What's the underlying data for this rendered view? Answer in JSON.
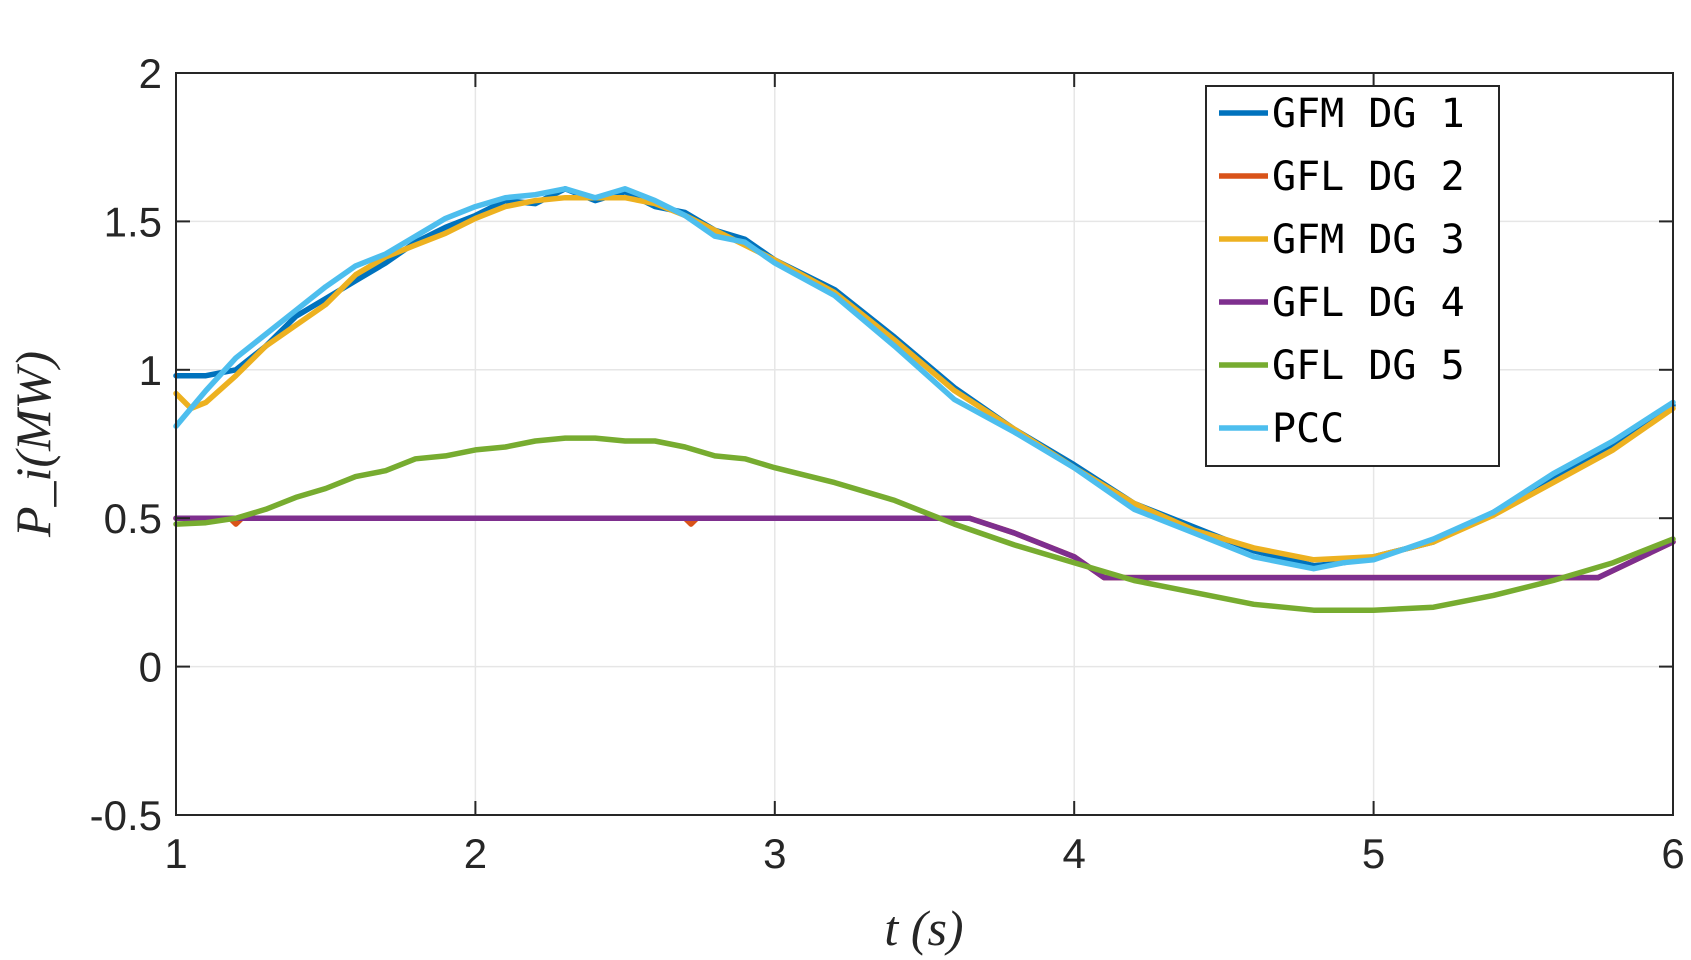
{
  "chart_data": {
    "type": "line",
    "xlabel": "t (s)",
    "ylabel": "P_i(MW)",
    "xlim": [
      1,
      6
    ],
    "ylim": [
      -0.5,
      2
    ],
    "xticks": [
      {
        "value": 1,
        "label": "1"
      },
      {
        "value": 2,
        "label": "2"
      },
      {
        "value": 3,
        "label": "3"
      },
      {
        "value": 4,
        "label": "4"
      },
      {
        "value": 5,
        "label": "5"
      },
      {
        "value": 6,
        "label": "6"
      }
    ],
    "yticks": [
      {
        "value": -0.5,
        "label": "-0.5"
      },
      {
        "value": 0,
        "label": "0"
      },
      {
        "value": 0.5,
        "label": "0.5"
      },
      {
        "value": 1,
        "label": "1"
      },
      {
        "value": 1.5,
        "label": "1.5"
      },
      {
        "value": 2,
        "label": "2"
      }
    ],
    "grid": true,
    "legend_position": "top-right",
    "series": [
      {
        "name": "GFM DG 1",
        "color": "#0072BD",
        "points": [
          [
            1.0,
            0.98
          ],
          [
            1.1,
            0.98
          ],
          [
            1.2,
            1.0
          ],
          [
            1.3,
            1.08
          ],
          [
            1.4,
            1.18
          ],
          [
            1.5,
            1.24
          ],
          [
            1.6,
            1.3
          ],
          [
            1.7,
            1.36
          ],
          [
            1.8,
            1.43
          ],
          [
            1.9,
            1.48
          ],
          [
            2.0,
            1.52
          ],
          [
            2.1,
            1.57
          ],
          [
            2.2,
            1.56
          ],
          [
            2.3,
            1.61
          ],
          [
            2.4,
            1.57
          ],
          [
            2.5,
            1.6
          ],
          [
            2.6,
            1.55
          ],
          [
            2.7,
            1.53
          ],
          [
            2.8,
            1.47
          ],
          [
            2.9,
            1.44
          ],
          [
            3.0,
            1.37
          ],
          [
            3.2,
            1.27
          ],
          [
            3.4,
            1.11
          ],
          [
            3.6,
            0.94
          ],
          [
            3.8,
            0.8
          ],
          [
            4.0,
            0.68
          ],
          [
            4.2,
            0.55
          ],
          [
            4.4,
            0.47
          ],
          [
            4.6,
            0.39
          ],
          [
            4.8,
            0.34
          ],
          [
            4.9,
            0.35
          ],
          [
            5.0,
            0.37
          ],
          [
            5.2,
            0.42
          ],
          [
            5.4,
            0.52
          ],
          [
            5.6,
            0.64
          ],
          [
            5.8,
            0.74
          ],
          [
            6.0,
            0.88
          ]
        ]
      },
      {
        "name": "GFL DG 2",
        "color": "#D95319",
        "points": [
          [
            1.0,
            0.5
          ],
          [
            1.18,
            0.5
          ],
          [
            1.2,
            0.48
          ],
          [
            1.22,
            0.5
          ],
          [
            2.7,
            0.5
          ],
          [
            2.72,
            0.48
          ],
          [
            2.74,
            0.5
          ],
          [
            3.65,
            0.5
          ],
          [
            3.8,
            0.45
          ],
          [
            4.0,
            0.37
          ],
          [
            4.1,
            0.3
          ],
          [
            5.75,
            0.3
          ],
          [
            6.0,
            0.42
          ]
        ]
      },
      {
        "name": "GFM DG 3",
        "color": "#EDB120",
        "points": [
          [
            1.0,
            0.92
          ],
          [
            1.05,
            0.87
          ],
          [
            1.1,
            0.89
          ],
          [
            1.2,
            0.98
          ],
          [
            1.3,
            1.08
          ],
          [
            1.4,
            1.15
          ],
          [
            1.5,
            1.22
          ],
          [
            1.6,
            1.32
          ],
          [
            1.7,
            1.38
          ],
          [
            1.8,
            1.42
          ],
          [
            1.9,
            1.46
          ],
          [
            2.0,
            1.51
          ],
          [
            2.1,
            1.55
          ],
          [
            2.2,
            1.57
          ],
          [
            2.3,
            1.58
          ],
          [
            2.4,
            1.58
          ],
          [
            2.5,
            1.58
          ],
          [
            2.6,
            1.56
          ],
          [
            2.7,
            1.52
          ],
          [
            2.8,
            1.47
          ],
          [
            2.9,
            1.42
          ],
          [
            3.0,
            1.37
          ],
          [
            3.2,
            1.26
          ],
          [
            3.4,
            1.1
          ],
          [
            3.6,
            0.93
          ],
          [
            3.8,
            0.8
          ],
          [
            4.0,
            0.67
          ],
          [
            4.2,
            0.55
          ],
          [
            4.4,
            0.46
          ],
          [
            4.6,
            0.4
          ],
          [
            4.8,
            0.36
          ],
          [
            5.0,
            0.37
          ],
          [
            5.2,
            0.42
          ],
          [
            5.4,
            0.51
          ],
          [
            5.6,
            0.62
          ],
          [
            5.8,
            0.73
          ],
          [
            6.0,
            0.87
          ]
        ]
      },
      {
        "name": "GFL DG 4",
        "color": "#7E2F8E",
        "points": [
          [
            1.0,
            0.5
          ],
          [
            3.65,
            0.5
          ],
          [
            3.8,
            0.45
          ],
          [
            4.0,
            0.37
          ],
          [
            4.1,
            0.3
          ],
          [
            5.75,
            0.3
          ],
          [
            6.0,
            0.42
          ]
        ]
      },
      {
        "name": "GFL DG 5",
        "color": "#77AC30",
        "points": [
          [
            1.0,
            0.48
          ],
          [
            1.1,
            0.485
          ],
          [
            1.2,
            0.5
          ],
          [
            1.3,
            0.53
          ],
          [
            1.4,
            0.57
          ],
          [
            1.5,
            0.6
          ],
          [
            1.6,
            0.64
          ],
          [
            1.7,
            0.66
          ],
          [
            1.8,
            0.7
          ],
          [
            1.9,
            0.71
          ],
          [
            2.0,
            0.73
          ],
          [
            2.1,
            0.74
          ],
          [
            2.2,
            0.76
          ],
          [
            2.3,
            0.77
          ],
          [
            2.4,
            0.77
          ],
          [
            2.5,
            0.76
          ],
          [
            2.6,
            0.76
          ],
          [
            2.7,
            0.74
          ],
          [
            2.8,
            0.71
          ],
          [
            2.9,
            0.7
          ],
          [
            3.0,
            0.67
          ],
          [
            3.2,
            0.62
          ],
          [
            3.4,
            0.56
          ],
          [
            3.6,
            0.48
          ],
          [
            3.8,
            0.41
          ],
          [
            4.0,
            0.35
          ],
          [
            4.2,
            0.29
          ],
          [
            4.4,
            0.25
          ],
          [
            4.6,
            0.21
          ],
          [
            4.8,
            0.19
          ],
          [
            4.9,
            0.19
          ],
          [
            5.0,
            0.19
          ],
          [
            5.2,
            0.2
          ],
          [
            5.4,
            0.24
          ],
          [
            5.6,
            0.29
          ],
          [
            5.8,
            0.35
          ],
          [
            6.0,
            0.43
          ]
        ]
      },
      {
        "name": "PCC",
        "color": "#4DBEEE",
        "points": [
          [
            1.0,
            0.81
          ],
          [
            1.1,
            0.93
          ],
          [
            1.2,
            1.04
          ],
          [
            1.3,
            1.12
          ],
          [
            1.4,
            1.2
          ],
          [
            1.5,
            1.28
          ],
          [
            1.6,
            1.35
          ],
          [
            1.7,
            1.39
          ],
          [
            1.8,
            1.45
          ],
          [
            1.9,
            1.51
          ],
          [
            2.0,
            1.55
          ],
          [
            2.1,
            1.58
          ],
          [
            2.2,
            1.59
          ],
          [
            2.3,
            1.61
          ],
          [
            2.4,
            1.58
          ],
          [
            2.5,
            1.61
          ],
          [
            2.6,
            1.57
          ],
          [
            2.7,
            1.52
          ],
          [
            2.8,
            1.45
          ],
          [
            2.9,
            1.43
          ],
          [
            3.0,
            1.36
          ],
          [
            3.2,
            1.25
          ],
          [
            3.4,
            1.08
          ],
          [
            3.6,
            0.9
          ],
          [
            3.8,
            0.79
          ],
          [
            4.0,
            0.67
          ],
          [
            4.2,
            0.53
          ],
          [
            4.4,
            0.45
          ],
          [
            4.6,
            0.37
          ],
          [
            4.8,
            0.33
          ],
          [
            4.9,
            0.35
          ],
          [
            5.0,
            0.36
          ],
          [
            5.2,
            0.43
          ],
          [
            5.4,
            0.52
          ],
          [
            5.6,
            0.65
          ],
          [
            5.8,
            0.76
          ],
          [
            6.0,
            0.89
          ]
        ]
      }
    ]
  }
}
